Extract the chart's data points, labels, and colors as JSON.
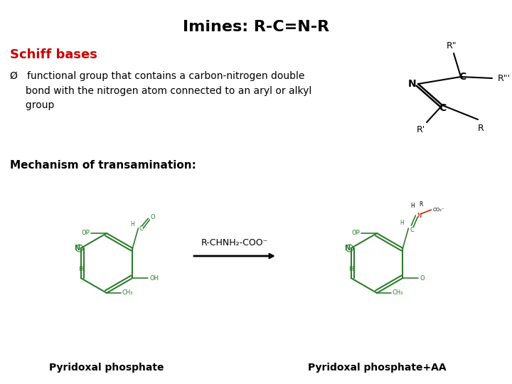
{
  "title": "Imines: R-C=N-R",
  "title_fontsize": 16,
  "title_color": "#000000",
  "schiff_bases_label": "Schiff bases",
  "schiff_bases_color": "#cc0000",
  "schiff_bases_fontsize": 13,
  "bullet_text": "Ø   functional group that contains a carbon-nitrogen double\n     bond with the nitrogen atom connected to an aryl or alkyl\n     group",
  "bullet_fontsize": 10,
  "bullet_color": "#000000",
  "mechanism_label": "Mechanism of transamination:",
  "mechanism_fontsize": 11,
  "mechanism_bold": true,
  "mechanism_color": "#000000",
  "arrow_label": "R-CHNH₂-COO⁻",
  "arrow_label_fontsize": 9,
  "arrow_color": "#000000",
  "pyridoxal_label": "Pyridoxal phosphate",
  "pyridoxal_aa_label": "Pyridoxal phosphate+AA",
  "label_fontsize": 10,
  "label_bold": true,
  "label_color": "#000000",
  "bg_color": "#ffffff",
  "green_color": "#2e7d2e",
  "red_color": "#cc2200",
  "black_color": "#000000"
}
